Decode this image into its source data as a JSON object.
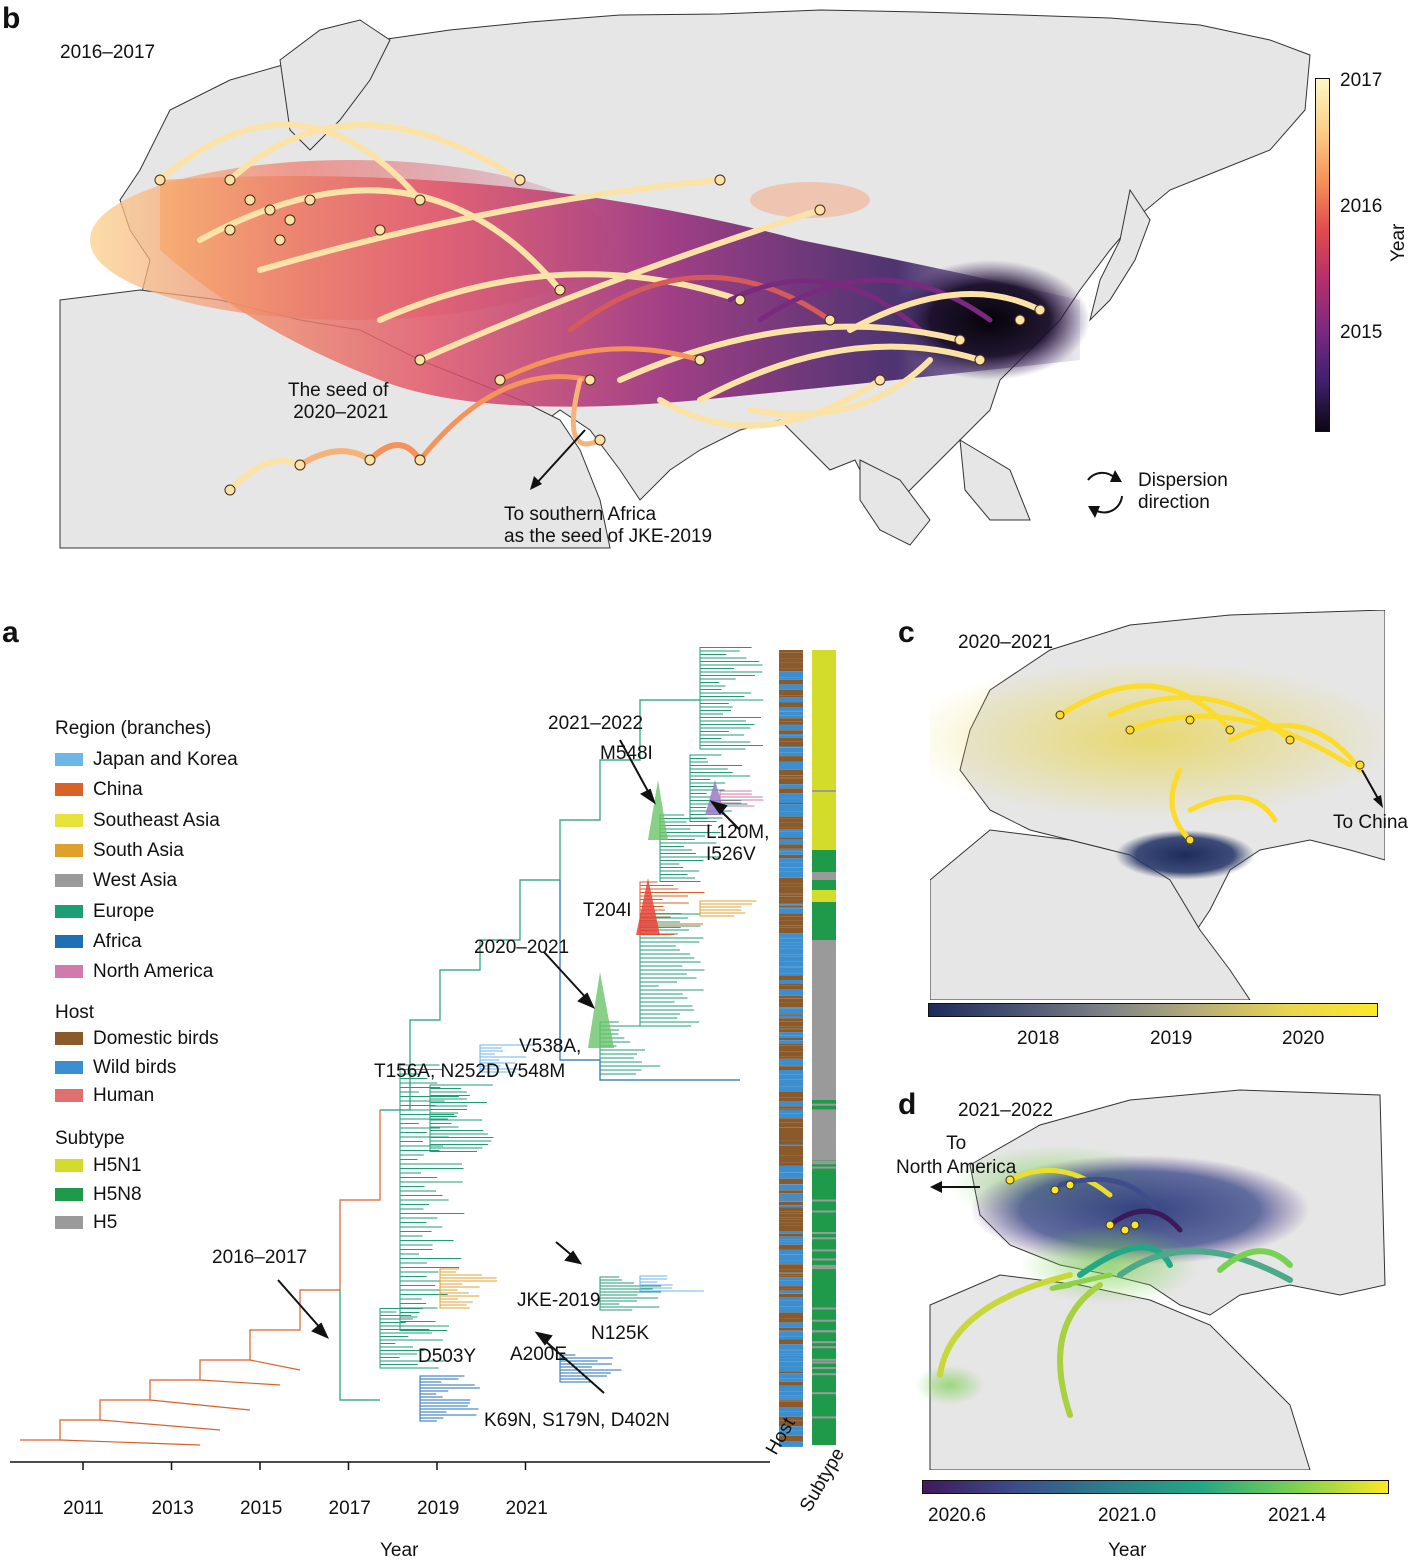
{
  "panels": {
    "b": {
      "letter": "b",
      "period": "2016–2017",
      "annotations": {
        "seed_2020": [
          "The seed of",
          "2020–2021"
        ],
        "southern_africa": [
          "To southern Africa",
          "as the seed of JKE-2019"
        ],
        "dispersion": [
          "Dispersion",
          "direction"
        ]
      },
      "colorbar": {
        "ticks": [
          "2017",
          "2016",
          "2015"
        ],
        "label": "Year",
        "colors": [
          "#fdf7c4",
          "#fbd08a",
          "#f5935a",
          "#e04c4e",
          "#b42f6b",
          "#7a2a7e",
          "#40206e",
          "#0c0713"
        ]
      }
    },
    "a": {
      "letter": "a",
      "legend": {
        "region_title": "Region (branches)",
        "regions": [
          {
            "label": "Japan and Korea",
            "color": "#6cb6e8"
          },
          {
            "label": "China",
            "color": "#d9622b"
          },
          {
            "label": "Southeast Asia",
            "color": "#e8e33a"
          },
          {
            "label": "South Asia",
            "color": "#e0a12a"
          },
          {
            "label": "West Asia",
            "color": "#9a9a9a"
          },
          {
            "label": "Europe",
            "color": "#1e9e74"
          },
          {
            "label": "Africa",
            "color": "#1f6fb4"
          },
          {
            "label": "North America",
            "color": "#d17aae"
          }
        ],
        "host_title": "Host",
        "hosts": [
          {
            "label": "Domestic birds",
            "color": "#8b5a2b"
          },
          {
            "label": "Wild birds",
            "color": "#3b8fd1"
          },
          {
            "label": "Human",
            "color": "#e07070"
          }
        ],
        "subtype_title": "Subtype",
        "subtypes": [
          {
            "label": "H5N1",
            "color": "#d4dc2b"
          },
          {
            "label": "H5N8",
            "color": "#1f9a4a"
          },
          {
            "label": "H5",
            "color": "#9a9a9a"
          }
        ]
      },
      "clade_labels": {
        "c2021": "2021–2022",
        "c2020": "2020–2021",
        "c2016": "2016–2017",
        "jke": "JKE-2019"
      },
      "mutations": {
        "m548i": "M548I",
        "l120m": [
          "L120M,",
          "I526V"
        ],
        "t204i": "T204I",
        "v538a": [
          "V538A,",
          "T156A, N252D  V548M"
        ],
        "n125k": "N125K",
        "d503y": "D503Y",
        "a200e": "A200E",
        "k69n": "K69N, S179N, D402N"
      },
      "x_axis": {
        "ticks": [
          "2011",
          "2013",
          "2015",
          "2017",
          "2019",
          "2021"
        ],
        "label": "Year"
      },
      "bar_labels": {
        "host": "Host",
        "subtype": "Subtype"
      }
    },
    "c": {
      "letter": "c",
      "period": "2020–2021",
      "annotation": "To China",
      "colorbar": {
        "ticks": [
          "2018",
          "2019",
          "2020"
        ],
        "colors": [
          "#1d2b5c",
          "#4a5573",
          "#7f8386",
          "#b5ad7a",
          "#e8d552",
          "#fde82b"
        ]
      }
    },
    "d": {
      "letter": "d",
      "period": "2021–2022",
      "annotation": [
        "To",
        "North America"
      ],
      "colorbar": {
        "ticks": [
          "2020.6",
          "2021.0",
          "2021.4"
        ],
        "label": "Year",
        "colors": [
          "#3f1a5c",
          "#3b4d8c",
          "#2c7f8c",
          "#22a884",
          "#7ad151",
          "#fde725"
        ]
      }
    }
  },
  "chart_data": [
    {
      "type": "map",
      "panel": "b",
      "title": "2016–2017",
      "colorbar": {
        "label": "Year",
        "range": [
          2014.2,
          2017
        ],
        "ticks": [
          2015,
          2016,
          2017
        ]
      }
    },
    {
      "type": "phylogenetic-tree",
      "panel": "a",
      "xlabel": "Year",
      "x_ticks": [
        2011,
        2013,
        2015,
        2017,
        2019,
        2021
      ],
      "xlim": [
        2010,
        2022.5
      ],
      "clades": [
        "2016–2017",
        "2020–2021",
        "2021–2022",
        "JKE-2019"
      ],
      "legend_groups": [
        "Region (branches)",
        "Host",
        "Subtype"
      ]
    },
    {
      "type": "map",
      "panel": "c",
      "title": "2020–2021",
      "colorbar": {
        "range": [
          2017.2,
          2020.5
        ],
        "ticks": [
          2018,
          2019,
          2020
        ]
      }
    },
    {
      "type": "map",
      "panel": "d",
      "title": "2021–2022",
      "colorbar": {
        "label": "Year",
        "range": [
          2020.5,
          2021.6
        ],
        "ticks": [
          2020.6,
          2021.0,
          2021.4
        ]
      }
    }
  ]
}
